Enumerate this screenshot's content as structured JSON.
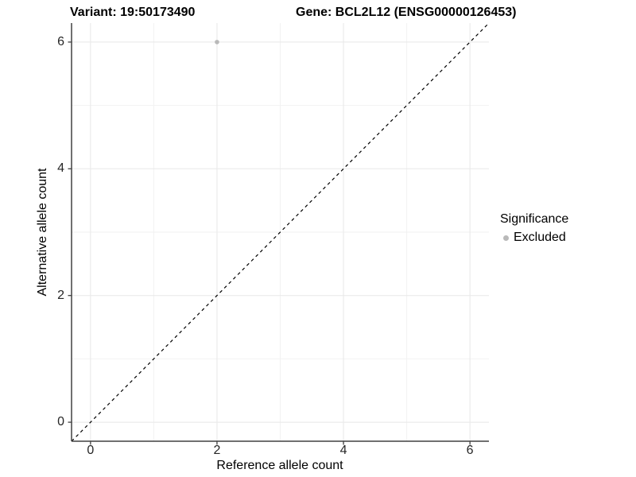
{
  "chart_data": {
    "type": "scatter",
    "title_left": "Variant: 19:50173490",
    "title_right": "Gene: BCL2L12 (ENSG00000126453)",
    "xlabel": "Reference allele count",
    "ylabel": "Alternative allele count",
    "xlim": [
      -0.3,
      6.3
    ],
    "ylim": [
      -0.3,
      6.3
    ],
    "xticks": [
      0,
      2,
      4,
      6
    ],
    "yticks": [
      0,
      2,
      4,
      6
    ],
    "xticks_minor": [
      1,
      3,
      5
    ],
    "yticks_minor": [
      1,
      3,
      5
    ],
    "grid": "major+minor",
    "legend_position": "right",
    "identity_line": {
      "slope": 1,
      "intercept": 0,
      "style": "dashed",
      "color": "#000000"
    },
    "series": [
      {
        "name": "Excluded",
        "color": "#b9b9b9",
        "points": [
          {
            "x": 2,
            "y": 6
          }
        ]
      }
    ],
    "legend": {
      "title": "Significance",
      "entries": [
        {
          "label": "Excluded",
          "color": "#b9b9b9"
        }
      ]
    },
    "colors": {
      "background": "#ffffff",
      "grid_major": "#e8e8e8",
      "grid_minor": "#f2f2f2",
      "axis_line": "#404040",
      "tick_mark": "#404040",
      "tick_label": "#262626"
    }
  }
}
